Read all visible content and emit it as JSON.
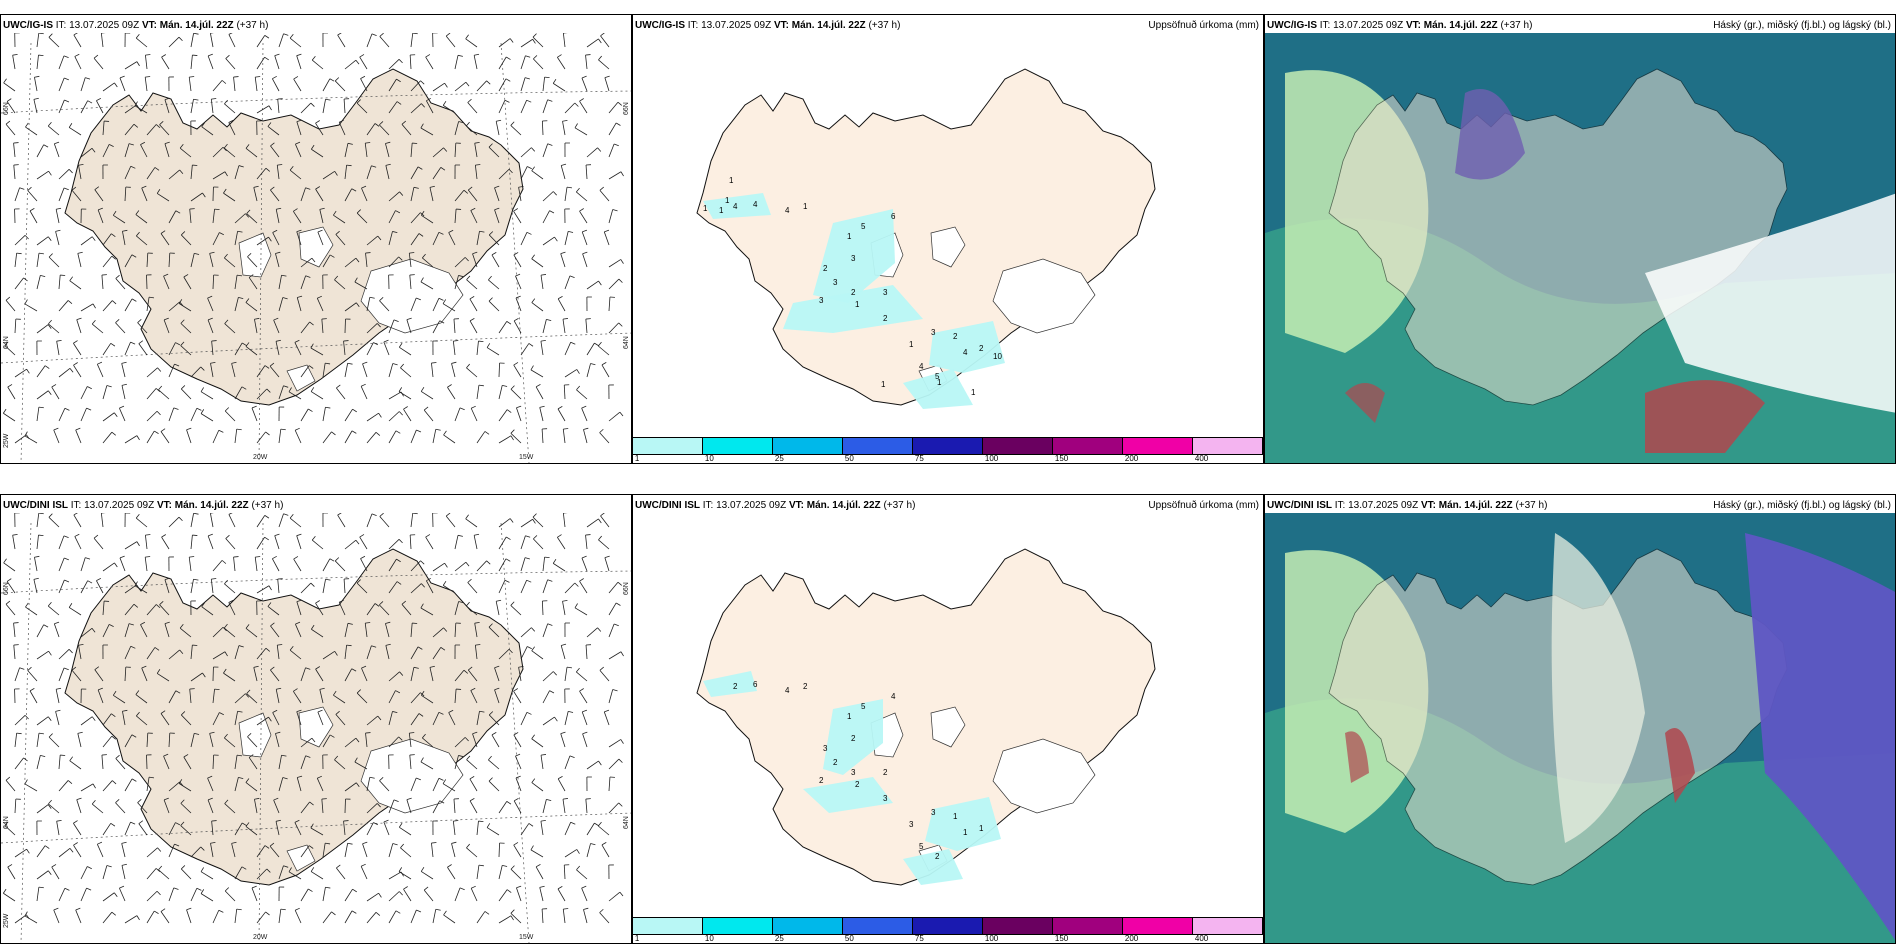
{
  "rows": [
    {
      "model": "UWC/IG-IS",
      "it_label": "IT:",
      "it_value": "13.07.2025 09Z",
      "vt_label": "VT:",
      "vt_value": "Mán. 14.júl. 22Z",
      "lead": "(+37 h)"
    },
    {
      "model": "UWC/DINI ISL",
      "it_label": "IT:",
      "it_value": "13.07.2025 09Z",
      "vt_label": "VT:",
      "vt_value": "Mán. 14.júl. 22Z",
      "lead": "(+37 h)"
    }
  ],
  "precip_title": "Uppsöfnuð úrkoma (mm)",
  "cloud_title": "Háský (gr.), miðský (fj.bl.) og lágský (bl.)",
  "coords": {
    "lat66": "66N",
    "lat64": "64N",
    "lon25": "25W",
    "lon20": "20W",
    "lon15": "15W"
  },
  "colorbar": {
    "labels": [
      "1",
      "10",
      "25",
      "50",
      "75",
      "100",
      "150",
      "200",
      "400"
    ],
    "colors": [
      "#b8f7f5",
      "#00e8ee",
      "#00b8ea",
      "#2c5ce6",
      "#1a1ab0",
      "#6a0060",
      "#a0007e",
      "#f000a6",
      "#f4b4f0"
    ]
  },
  "land_color_wind": "#efe4d6",
  "land_color_precip": "#fcefe2",
  "sea_color_cloud": "#1f6f86",
  "precip_labels_top": [
    "1",
    "1",
    "1",
    "1",
    "4",
    "4",
    "4",
    "1",
    "1",
    "5",
    "6",
    "3",
    "2",
    "3",
    "3",
    "2",
    "3",
    "1",
    "2",
    "1",
    "3",
    "2",
    "4",
    "5",
    "4",
    "2",
    "10",
    "1",
    "1",
    "1"
  ],
  "precip_labels_bottom": [
    "2",
    "6",
    "4",
    "2",
    "1",
    "5",
    "4",
    "2",
    "3",
    "2",
    "2",
    "3",
    "2",
    "2",
    "3",
    "3",
    "3",
    "1",
    "5",
    "2",
    "1",
    "1"
  ]
}
